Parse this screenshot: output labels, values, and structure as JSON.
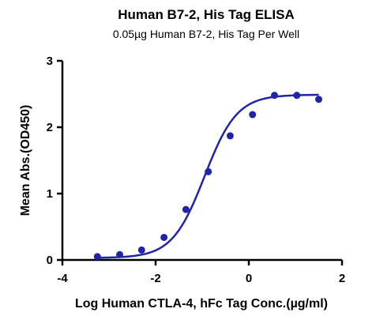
{
  "chart_data": {
    "type": "scatter",
    "title": "Human B7-2, His Tag ELISA",
    "subtitle": "0.05µg Human B7-2, His Tag Per Well",
    "xlabel": "Log Human CTLA-4, hFc Tag Conc.(µg/ml)",
    "ylabel": "Mean Abs.(OD450)",
    "xlim": [
      -4,
      2
    ],
    "ylim": [
      0,
      3
    ],
    "x_ticks": [
      -4,
      -2,
      0,
      2
    ],
    "y_ticks": [
      0,
      1,
      2,
      3
    ],
    "x_tick_labels": [
      "-4",
      "-2",
      "0",
      "2"
    ],
    "y_tick_labels": [
      "0",
      "1",
      "2",
      "3"
    ],
    "grid": false,
    "series": [
      {
        "color": "#1f24a8",
        "x": [
          -3.25,
          -2.77,
          -2.3,
          -1.82,
          -1.35,
          -0.87,
          -0.4,
          0.08,
          0.55,
          1.03,
          1.5
        ],
        "y": [
          0.05,
          0.08,
          0.15,
          0.34,
          0.76,
          1.33,
          1.87,
          2.19,
          2.48,
          2.48,
          2.42
        ],
        "fit": {
          "model": "4PL",
          "bottom": 0.03,
          "top": 2.49,
          "logEC50": -0.95,
          "hill": 1.25,
          "x_range": [
            -3.25,
            1.5
          ]
        }
      }
    ]
  }
}
